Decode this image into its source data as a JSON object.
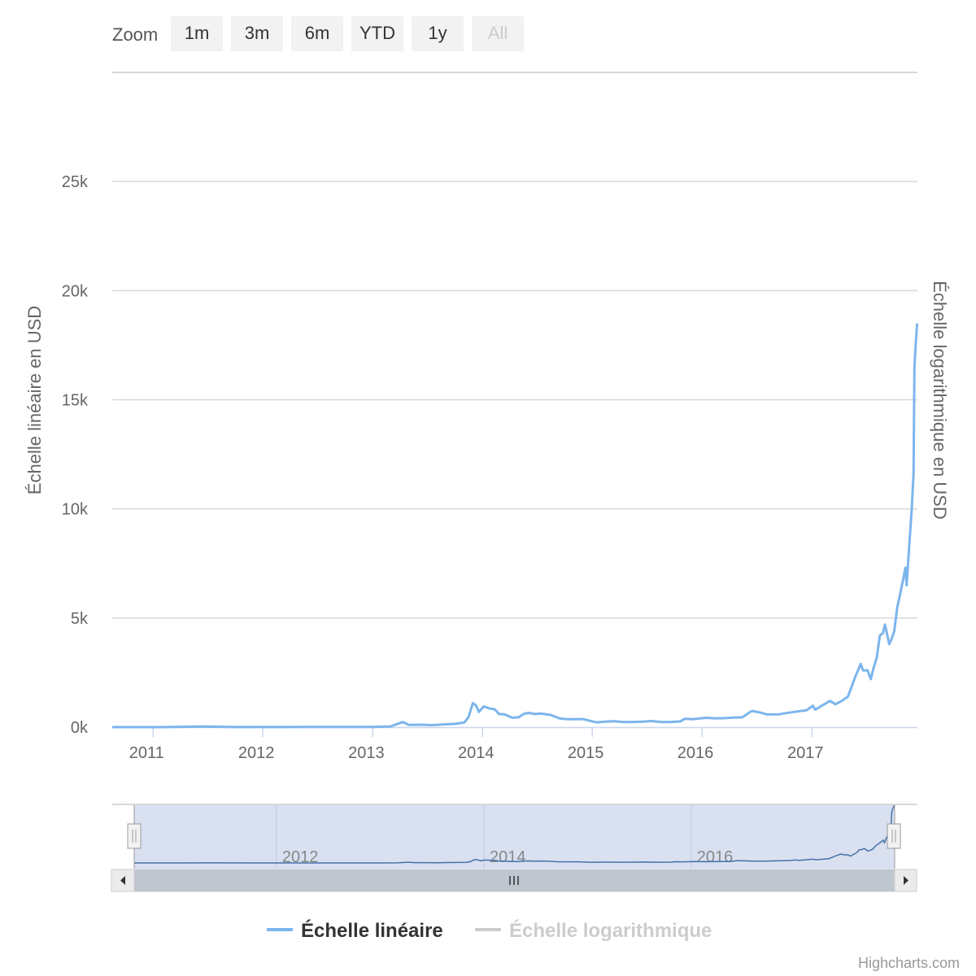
{
  "rangeSelector": {
    "label": "Zoom",
    "buttons": [
      {
        "label": "1m",
        "enabled": true
      },
      {
        "label": "3m",
        "enabled": true
      },
      {
        "label": "6m",
        "enabled": true
      },
      {
        "label": "YTD",
        "enabled": true
      },
      {
        "label": "1y",
        "enabled": true
      },
      {
        "label": "All",
        "enabled": false
      }
    ]
  },
  "chart_data": {
    "type": "line",
    "title": "",
    "xlabel": "",
    "ylabel": "Échelle linéaire en USD",
    "ylabel_right": "Échelle logarithmique en USD",
    "ylim": [
      0,
      30000
    ],
    "y_ticks": [
      0,
      5000,
      10000,
      15000,
      20000,
      25000
    ],
    "y_tick_labels": [
      "0k",
      "5k",
      "10k",
      "15k",
      "20k",
      "25k"
    ],
    "x_range": [
      "2010-08-18",
      "2017-12-18"
    ],
    "x_ticks": [
      "2011-01-01",
      "2012-01-01",
      "2013-01-01",
      "2014-01-01",
      "2015-01-01",
      "2016-01-01",
      "2017-01-01"
    ],
    "x_tick_labels": [
      "2011",
      "2012",
      "2013",
      "2014",
      "2015",
      "2016",
      "2017"
    ],
    "grid": true,
    "legend_position": "bottom-center",
    "series": [
      {
        "name": "Échelle linéaire",
        "color": "#7cb5ec",
        "visible": true,
        "x": [
          "2010-08-18",
          "2011-02-01",
          "2011-06-08",
          "2011-10-01",
          "2012-03-01",
          "2012-08-15",
          "2013-01-01",
          "2013-03-01",
          "2013-04-10",
          "2013-05-01",
          "2013-06-15",
          "2013-07-15",
          "2013-09-01",
          "2013-10-01",
          "2013-11-01",
          "2013-11-15",
          "2013-11-30",
          "2013-12-10",
          "2013-12-20",
          "2014-01-05",
          "2014-01-25",
          "2014-02-10",
          "2014-02-25",
          "2014-03-15",
          "2014-04-10",
          "2014-05-01",
          "2014-05-20",
          "2014-06-05",
          "2014-06-25",
          "2014-07-15",
          "2014-08-15",
          "2014-09-15",
          "2014-10-05",
          "2014-11-01",
          "2014-12-01",
          "2015-01-14",
          "2015-02-15",
          "2015-03-15",
          "2015-04-15",
          "2015-05-20",
          "2015-06-20",
          "2015-07-15",
          "2015-08-20",
          "2015-09-20",
          "2015-10-20",
          "2015-11-05",
          "2015-12-01",
          "2016-01-15",
          "2016-02-15",
          "2016-03-15",
          "2016-04-15",
          "2016-05-15",
          "2016-06-10",
          "2016-06-17",
          "2016-07-15",
          "2016-08-05",
          "2016-09-15",
          "2016-10-15",
          "2016-11-15",
          "2016-12-15",
          "2017-01-04",
          "2017-01-12",
          "2017-02-05",
          "2017-03-02",
          "2017-03-20",
          "2017-04-10",
          "2017-05-01",
          "2017-05-25",
          "2017-06-12",
          "2017-06-20",
          "2017-07-05",
          "2017-07-16",
          "2017-07-25",
          "2017-08-05",
          "2017-08-15",
          "2017-08-25",
          "2017-09-01",
          "2017-09-15",
          "2017-09-22",
          "2017-10-02",
          "2017-10-12",
          "2017-10-20",
          "2017-11-01",
          "2017-11-08",
          "2017-11-12",
          "2017-11-20",
          "2017-11-29",
          "2017-12-05",
          "2017-12-08",
          "2017-12-12",
          "2017-12-17"
        ],
        "y": [
          0.07,
          1,
          30,
          4,
          5,
          11,
          13,
          35,
          230,
          100,
          110,
          90,
          130,
          150,
          210,
          450,
          1100,
          1000,
          700,
          950,
          850,
          820,
          600,
          590,
          430,
          450,
          620,
          650,
          600,
          620,
          560,
          400,
          370,
          360,
          370,
          220,
          250,
          270,
          230,
          240,
          250,
          280,
          230,
          240,
          260,
          380,
          360,
          430,
          400,
          410,
          440,
          450,
          700,
          740,
          660,
          580,
          590,
          660,
          720,
          780,
          980,
          800,
          1000,
          1200,
          1050,
          1200,
          1400,
          2300,
          2900,
          2600,
          2600,
          2200,
          2700,
          3200,
          4200,
          4300,
          4700,
          3800,
          4000,
          4400,
          5500,
          6000,
          6800,
          7300,
          6500,
          8200,
          10000,
          11600,
          16500,
          17500,
          18500
        ]
      },
      {
        "name": "Échelle logarithmique",
        "color": "#cccccc",
        "visible": false
      }
    ]
  },
  "navigator": {
    "x_tick_labels": [
      "2012",
      "2014",
      "2016"
    ]
  },
  "credits": "Highcharts.com"
}
